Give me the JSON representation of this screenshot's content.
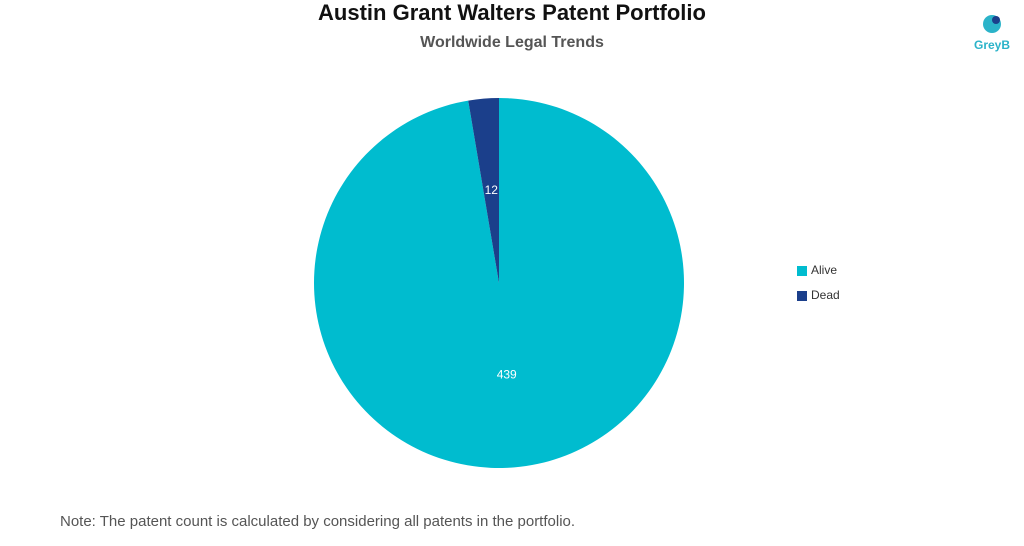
{
  "chart_data": {
    "type": "pie",
    "title": "Austin Grant Walters Patent Portfolio",
    "subtitle": "Worldwide Legal Trends",
    "categories": [
      "Alive",
      "Dead"
    ],
    "values": [
      439,
      12
    ],
    "colors": [
      "#00bccf",
      "#1b3f8b"
    ],
    "legend": "right",
    "note": "Note: The patent count is calculated by considering all patents in the portfolio."
  },
  "logo": "GreyB"
}
